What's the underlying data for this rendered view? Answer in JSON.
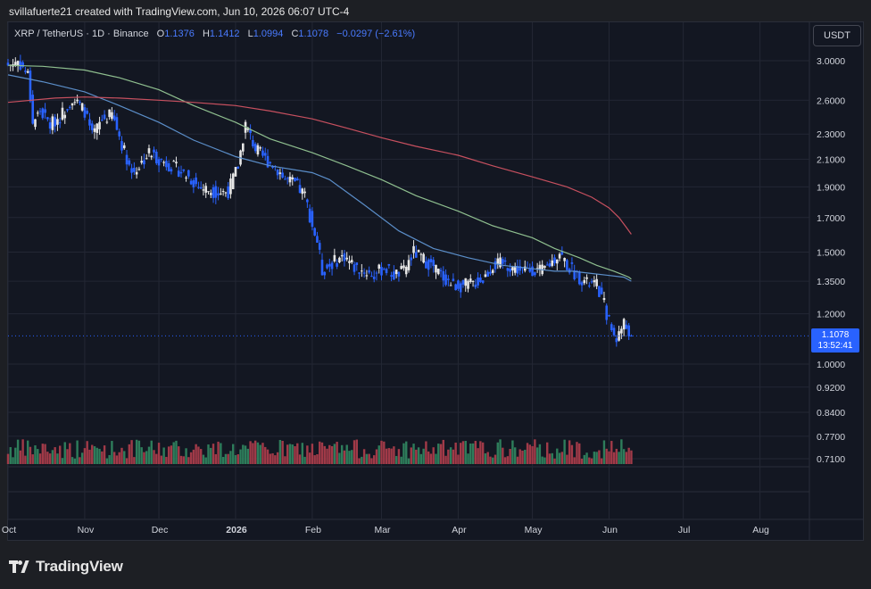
{
  "header": {
    "created_text": "svillafuerte21 created with TradingView.com, Jun 10, 2026 06:07 UTC-4"
  },
  "legend": {
    "symbol": "XRP / TetherUS · 1D · Binance",
    "o_label": "O",
    "o_value": "1.1376",
    "h_label": "H",
    "h_value": "1.1412",
    "l_label": "L",
    "l_value": "1.0994",
    "c_label": "C",
    "c_value": "1.1078",
    "change": "−0.0297 (−2.61%)"
  },
  "currency_button": "USDT",
  "last_price": {
    "value": "1.1078",
    "countdown": "13:52:41"
  },
  "brand": {
    "name": "TradingView"
  },
  "colors": {
    "up": "#e6e6e6",
    "down": "#2962ff",
    "vol_up": "#2e7d5b",
    "vol_down": "#a13a48",
    "ma_fast": "#5b8ec9",
    "ma_mid": "#8fbf8f",
    "ma_slow": "#c7505f",
    "price_line": "#2962ff"
  },
  "chart_data": {
    "type": "candlestick",
    "title": "XRP / TetherUS · 1D · Binance",
    "y_scale": "log",
    "y_ticks": [
      "3.0000",
      "2.6000",
      "2.3000",
      "2.1000",
      "1.9000",
      "1.7000",
      "1.5000",
      "1.3500",
      "1.2000",
      "1.0000",
      "0.9200",
      "0.8400",
      "0.7700",
      "0.7100"
    ],
    "x_ticks": [
      "Oct",
      "Nov",
      "Dec",
      "2026",
      "Feb",
      "Mar",
      "Apr",
      "May",
      "Jun",
      "Jul",
      "Aug"
    ],
    "x_tick_dates": [
      "2025-10-01",
      "2025-11-01",
      "2025-12-01",
      "2026-01-01",
      "2026-02-01",
      "2026-03-01",
      "2026-04-01",
      "2026-05-01",
      "2026-06-01",
      "2026-07-01",
      "2026-08-01"
    ],
    "x_range": [
      "2025-10-01",
      "2026-08-21"
    ],
    "y_range": [
      0.7,
      3.25
    ],
    "closes": [
      {
        "date": "2025-10-01",
        "close": 2.95
      },
      {
        "date": "2025-10-05",
        "close": 3.0
      },
      {
        "date": "2025-10-09",
        "close": 2.85
      },
      {
        "date": "2025-10-11",
        "close": 2.4
      },
      {
        "date": "2025-10-14",
        "close": 2.5
      },
      {
        "date": "2025-10-18",
        "close": 2.38
      },
      {
        "date": "2025-10-22",
        "close": 2.45
      },
      {
        "date": "2025-10-27",
        "close": 2.62
      },
      {
        "date": "2025-11-01",
        "close": 2.5
      },
      {
        "date": "2025-11-04",
        "close": 2.28
      },
      {
        "date": "2025-11-08",
        "close": 2.42
      },
      {
        "date": "2025-11-12",
        "close": 2.47
      },
      {
        "date": "2025-11-16",
        "close": 2.22
      },
      {
        "date": "2025-11-20",
        "close": 2.0
      },
      {
        "date": "2025-11-23",
        "close": 2.05
      },
      {
        "date": "2025-11-27",
        "close": 2.15
      },
      {
        "date": "2025-12-01",
        "close": 2.1
      },
      {
        "date": "2025-12-05",
        "close": 2.06
      },
      {
        "date": "2025-12-09",
        "close": 2.02
      },
      {
        "date": "2025-12-13",
        "close": 1.97
      },
      {
        "date": "2025-12-17",
        "close": 1.9
      },
      {
        "date": "2025-12-21",
        "close": 1.88
      },
      {
        "date": "2025-12-25",
        "close": 1.86
      },
      {
        "date": "2025-12-29",
        "close": 1.87
      },
      {
        "date": "2026-01-02",
        "close": 2.05
      },
      {
        "date": "2026-01-05",
        "close": 2.38
      },
      {
        "date": "2026-01-09",
        "close": 2.18
      },
      {
        "date": "2026-01-13",
        "close": 2.1
      },
      {
        "date": "2026-01-17",
        "close": 2.05
      },
      {
        "date": "2026-01-21",
        "close": 1.95
      },
      {
        "date": "2026-01-25",
        "close": 1.92
      },
      {
        "date": "2026-01-29",
        "close": 1.84
      },
      {
        "date": "2026-02-01",
        "close": 1.65
      },
      {
        "date": "2026-02-03",
        "close": 1.56
      },
      {
        "date": "2026-02-05",
        "close": 1.4
      },
      {
        "date": "2026-02-07",
        "close": 1.42
      },
      {
        "date": "2026-02-10",
        "close": 1.45
      },
      {
        "date": "2026-02-14",
        "close": 1.48
      },
      {
        "date": "2026-02-18",
        "close": 1.42
      },
      {
        "date": "2026-02-22",
        "close": 1.4
      },
      {
        "date": "2026-02-26",
        "close": 1.38
      },
      {
        "date": "2026-03-02",
        "close": 1.42
      },
      {
        "date": "2026-03-06",
        "close": 1.38
      },
      {
        "date": "2026-03-10",
        "close": 1.4
      },
      {
        "date": "2026-03-14",
        "close": 1.5
      },
      {
        "date": "2026-03-18",
        "close": 1.46
      },
      {
        "date": "2026-03-22",
        "close": 1.42
      },
      {
        "date": "2026-03-26",
        "close": 1.37
      },
      {
        "date": "2026-03-30",
        "close": 1.33
      },
      {
        "date": "2026-04-03",
        "close": 1.33
      },
      {
        "date": "2026-04-07",
        "close": 1.34
      },
      {
        "date": "2026-04-11",
        "close": 1.36
      },
      {
        "date": "2026-04-15",
        "close": 1.43
      },
      {
        "date": "2026-04-19",
        "close": 1.44
      },
      {
        "date": "2026-04-23",
        "close": 1.42
      },
      {
        "date": "2026-04-27",
        "close": 1.4
      },
      {
        "date": "2026-05-01",
        "close": 1.41
      },
      {
        "date": "2026-05-05",
        "close": 1.4
      },
      {
        "date": "2026-05-09",
        "close": 1.45
      },
      {
        "date": "2026-05-12",
        "close": 1.5
      },
      {
        "date": "2026-05-15",
        "close": 1.43
      },
      {
        "date": "2026-05-19",
        "close": 1.38
      },
      {
        "date": "2026-05-23",
        "close": 1.34
      },
      {
        "date": "2026-05-27",
        "close": 1.33
      },
      {
        "date": "2026-05-30",
        "close": 1.24
      },
      {
        "date": "2026-06-02",
        "close": 1.13
      },
      {
        "date": "2026-06-04",
        "close": 1.1
      },
      {
        "date": "2026-06-07",
        "close": 1.16
      },
      {
        "date": "2026-06-10",
        "close": 1.1078
      }
    ],
    "moving_averages": [
      {
        "color": "#5b8ec9",
        "values": [
          2.85,
          2.78,
          2.68,
          2.55,
          2.4,
          2.25,
          2.12,
          2.05,
          2.0,
          1.95,
          1.78,
          1.62,
          1.52,
          1.47,
          1.43,
          1.41,
          1.4,
          1.4,
          1.39,
          1.38,
          1.37,
          1.35
        ]
      },
      {
        "color": "#8fbf8f",
        "values": [
          2.95,
          2.94,
          2.9,
          2.82,
          2.7,
          2.55,
          2.4,
          2.26,
          2.15,
          2.05,
          1.95,
          1.84,
          1.74,
          1.65,
          1.58,
          1.52,
          1.47,
          1.43,
          1.4,
          1.38,
          1.37,
          1.36
        ]
      },
      {
        "color": "#c7505f",
        "values": [
          2.58,
          2.62,
          2.63,
          2.62,
          2.6,
          2.58,
          2.55,
          2.5,
          2.43,
          2.35,
          2.27,
          2.2,
          2.13,
          2.05,
          1.97,
          1.9,
          1.83,
          1.76,
          1.7,
          1.64,
          1.6
        ]
      }
    ],
    "ma_dates": {
      "fast": [
        "2025-10-01",
        "2025-10-15",
        "2025-11-01",
        "2025-11-15",
        "2025-12-01",
        "2025-12-15",
        "2026-01-01",
        "2026-01-15",
        "2026-02-01",
        "2026-02-08",
        "2026-02-22",
        "2026-03-08",
        "2026-03-22",
        "2026-04-05",
        "2026-04-19",
        "2026-05-03",
        "2026-05-10",
        "2026-05-17",
        "2026-05-24",
        "2026-05-31",
        "2026-06-07",
        "2026-06-10"
      ],
      "mid": [
        "2025-10-01",
        "2025-10-15",
        "2025-11-01",
        "2025-11-15",
        "2025-12-01",
        "2025-12-15",
        "2026-01-01",
        "2026-01-15",
        "2026-02-01",
        "2026-02-15",
        "2026-03-01",
        "2026-03-15",
        "2026-04-01",
        "2026-04-15",
        "2026-05-01",
        "2026-05-10",
        "2026-05-20",
        "2026-05-27",
        "2026-06-03",
        "2026-06-07",
        "2026-06-09",
        "2026-06-10"
      ],
      "slow": [
        "2025-10-01",
        "2025-10-20",
        "2025-11-01",
        "2025-11-15",
        "2025-12-01",
        "2025-12-15",
        "2026-01-01",
        "2026-01-15",
        "2026-02-01",
        "2026-02-15",
        "2026-03-01",
        "2026-03-15",
        "2026-04-01",
        "2026-04-15",
        "2026-05-01",
        "2026-05-15",
        "2026-05-25",
        "2026-06-01",
        "2026-06-05",
        "2026-06-08",
        "2026-06-10"
      ]
    }
  }
}
